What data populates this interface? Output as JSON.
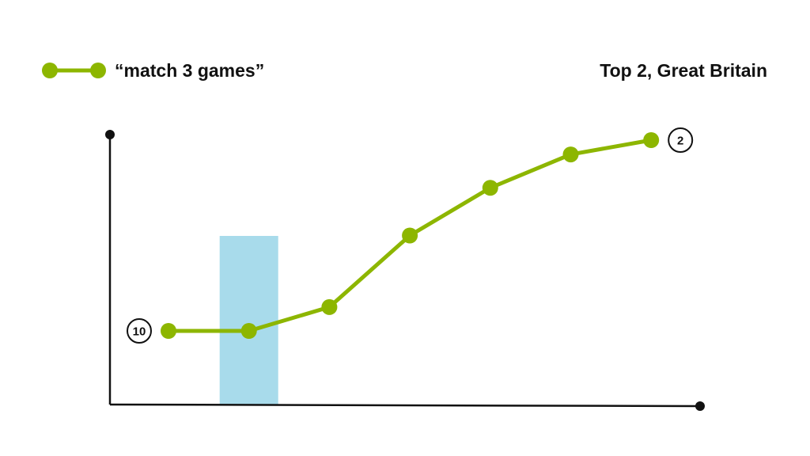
{
  "chart_data": {
    "type": "line",
    "title": "Top 2, Great Britain",
    "xlabel": "",
    "ylabel": "",
    "y_axis": "rank",
    "ylim": [
      12,
      2
    ],
    "grid": false,
    "legend_position": "top-left",
    "series": [
      {
        "name": "“match 3 games”",
        "color": "#8db600",
        "x": [
          1,
          2,
          3,
          4,
          5,
          6,
          7
        ],
        "values": [
          10,
          10,
          9,
          6,
          4,
          2.6,
          2
        ]
      }
    ],
    "highlight": {
      "x": 2,
      "color": "#a8dbeb"
    },
    "annotations": [
      {
        "label": "10",
        "point_index": 0,
        "side": "left"
      },
      {
        "label": "2",
        "point_index": 6,
        "side": "right"
      }
    ]
  }
}
